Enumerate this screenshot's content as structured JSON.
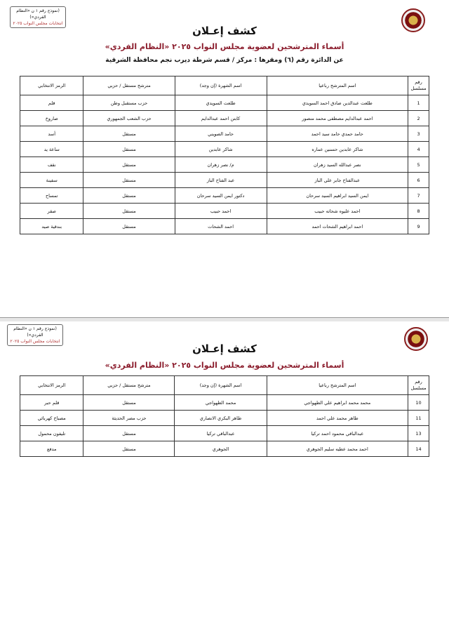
{
  "stamp": {
    "line1": "(نموذج رقم ١ ن «النظام الفردي»)",
    "line2": "انتخابات مجلس النواب ٢٠٢٥"
  },
  "title": "كشف إعـلان",
  "subtitle": "أسماء المترشحين لعضوية مجلس النواب ٢٠٢٥ «النظام الفردي»",
  "district": "عن الدائرة رقم (٦)  ومقرها : مركز / قسم شرطة ديرب نجم  محافظة الشرقية",
  "columns": {
    "num": "رقم مسلسل",
    "name": "اسم المترشح رباعيا",
    "nick": "اسم الشهرة (إن وجد)",
    "party": "مترشح مستقل / حزبي",
    "symbol": "الرمز الانتخابي"
  },
  "page1_rows": [
    {
      "num": "1",
      "name": "طلعت عبدالدين صادق احمد السويدي",
      "nick": "طلعت السويدي",
      "party": "حزب مستقبل وطن",
      "symbol": "قلم"
    },
    {
      "num": "2",
      "name": "احمد عبدالدايم مصطفى محمد منصور",
      "nick": "كابتن احمد عبدالدايم",
      "party": "حزب الشعب الجمهوري",
      "symbol": "صاروخ"
    },
    {
      "num": "3",
      "name": "حامد حمدي حامد سيد احمد",
      "nick": "حامد الصويني",
      "party": "مستقل",
      "symbol": "أسد"
    },
    {
      "num": "4",
      "name": "شاكر عابدين حسنين عماره",
      "nick": "شاكر عابدين",
      "party": "مستقل",
      "symbol": "ساعة يد"
    },
    {
      "num": "5",
      "name": "نصر عبدالله السيد زهران",
      "nick": "م/ نصر زهران",
      "party": "مستقل",
      "symbol": "نقف"
    },
    {
      "num": "6",
      "name": "عبدالفتاح جابر علي الباز",
      "nick": "عبد الفتاح الباز",
      "party": "مستقل",
      "symbol": "سفينة"
    },
    {
      "num": "7",
      "name": "ايمن السيد ابراهيم السيد سرحان",
      "nick": "دكتور ايمن السيد سرحان",
      "party": "مستقل",
      "symbol": "تمساح"
    },
    {
      "num": "8",
      "name": "احمد عليوه شحاته حبيب",
      "nick": "احمد حبيب",
      "party": "مستقل",
      "symbol": "صقر"
    },
    {
      "num": "9",
      "name": "احمد ابراهيم الشحات احمد",
      "nick": "احمد الشحات",
      "party": "مستقل",
      "symbol": "بندقية صيد"
    }
  ],
  "page2_rows": [
    {
      "num": "10",
      "name": "محمد محمد ابراهيم علي الطهواجي",
      "nick": "محمد الطهواجي",
      "party": "مستقل",
      "symbol": "قلم حبر"
    },
    {
      "num": "11",
      "name": "طاهر محمد علي احمد",
      "nick": "طاهر البكري الانصاري",
      "party": "حزب مصر الحديثة",
      "symbol": "مصباح كهربائي"
    },
    {
      "num": "13",
      "name": "عبدالباقي محمود احمد تركيا",
      "nick": "عبدالباقي تركيا",
      "party": "مستقل",
      "symbol": "تليفون محمول"
    },
    {
      "num": "14",
      "name": "احمد محمد عطيه سليم الجوهري",
      "nick": "الجوهري",
      "party": "مستقل",
      "symbol": "مدفع"
    }
  ]
}
